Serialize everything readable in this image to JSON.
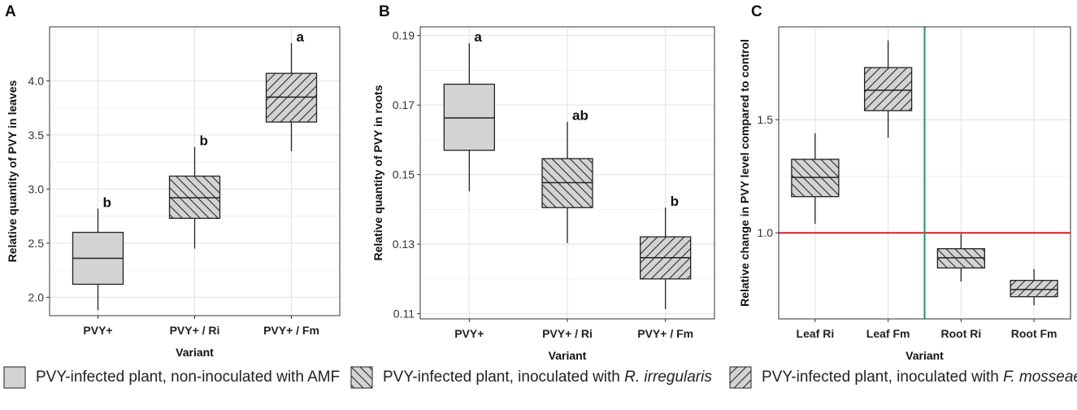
{
  "chart_data": [
    {
      "type": "box",
      "panel_label": "A",
      "xlabel": "Variant",
      "ylabel": "Relative quantity of PVY in leaves",
      "ylim": [
        1.83,
        4.5
      ],
      "yticks": [
        2.0,
        2.5,
        3.0,
        3.5,
        4.0
      ],
      "ytick_labels": [
        "2.0",
        "2.5",
        "3.0",
        "3.5",
        "4.0"
      ],
      "categories": [
        "PVY+",
        "PVY+ / Ri",
        "PVY+ / Fm"
      ],
      "boxes": [
        {
          "category": "PVY+",
          "min": 1.88,
          "q1": 2.12,
          "median": 2.36,
          "q3": 2.6,
          "max": 2.82,
          "fill": "solid",
          "letter": "b"
        },
        {
          "category": "PVY+ / Ri",
          "min": 2.45,
          "q1": 2.73,
          "median": 2.92,
          "q3": 3.12,
          "max": 3.39,
          "fill": "hatch-back",
          "letter": "b"
        },
        {
          "category": "PVY+ / Fm",
          "min": 3.35,
          "q1": 3.62,
          "median": 3.85,
          "q3": 4.07,
          "max": 4.35,
          "fill": "hatch-fwd",
          "letter": "a"
        }
      ]
    },
    {
      "type": "box",
      "panel_label": "B",
      "xlabel": "Variant",
      "ylabel": "Relative quantity of PVY in roots",
      "ylim": [
        0.1085,
        0.1925
      ],
      "yticks": [
        0.11,
        0.13,
        0.15,
        0.17,
        0.19
      ],
      "ytick_labels": [
        "0.11",
        "0.13",
        "0.15",
        "0.17",
        "0.19"
      ],
      "categories": [
        "PVY+",
        "PVY+ / Ri",
        "PVY+ / Fm"
      ],
      "boxes": [
        {
          "category": "PVY+",
          "min": 0.1452,
          "q1": 0.157,
          "median": 0.1663,
          "q3": 0.176,
          "max": 0.1878,
          "fill": "solid",
          "letter": "a"
        },
        {
          "category": "PVY+ / Ri",
          "min": 0.1303,
          "q1": 0.1405,
          "median": 0.1477,
          "q3": 0.1546,
          "max": 0.1652,
          "fill": "hatch-back",
          "letter": "ab"
        },
        {
          "category": "PVY+ / Fm",
          "min": 0.1113,
          "q1": 0.12,
          "median": 0.1261,
          "q3": 0.1321,
          "max": 0.1405,
          "fill": "hatch-fwd",
          "letter": "b"
        }
      ]
    },
    {
      "type": "box",
      "panel_label": "C",
      "xlabel": "Variant",
      "ylabel": "Relative change in PVY level compared to control",
      "ylim": [
        0.62,
        1.91
      ],
      "yticks": [
        1.0,
        1.5
      ],
      "ytick_labels": [
        "1.0",
        "1.5"
      ],
      "categories": [
        "Leaf Ri",
        "Leaf Fm",
        "Root Ri",
        "Root Fm"
      ],
      "boxes": [
        {
          "category": "Leaf Ri",
          "min": 1.04,
          "q1": 1.16,
          "median": 1.245,
          "q3": 1.325,
          "max": 1.44,
          "fill": "hatch-back",
          "letter": ""
        },
        {
          "category": "Leaf Fm",
          "min": 1.42,
          "q1": 1.54,
          "median": 1.63,
          "q3": 1.73,
          "max": 1.85,
          "fill": "hatch-fwd",
          "letter": ""
        },
        {
          "category": "Root Ri",
          "min": 0.785,
          "q1": 0.845,
          "median": 0.89,
          "q3": 0.93,
          "max": 0.995,
          "fill": "hatch-back",
          "letter": ""
        },
        {
          "category": "Root Fm",
          "min": 0.68,
          "q1": 0.718,
          "median": 0.75,
          "q3": 0.79,
          "max": 0.84,
          "fill": "hatch-fwd",
          "letter": ""
        }
      ],
      "reference_lines": [
        {
          "orientation": "horizontal",
          "value": 1.0,
          "color": "#e8161b"
        },
        {
          "orientation": "vertical",
          "between": [
            "Leaf Fm",
            "Root Ri"
          ],
          "color": "#1d9a5a"
        }
      ]
    }
  ],
  "legend": {
    "items": [
      {
        "fill": "solid",
        "text": "PVY-infected plant, non-inoculated with AMF",
        "species": ""
      },
      {
        "fill": "hatch-back",
        "text": "PVY-infected plant, inoculated with ",
        "species": "R. irregularis"
      },
      {
        "fill": "hatch-fwd",
        "text": "PVY-infected plant, inoculated with ",
        "species": "F. mosseae"
      }
    ]
  },
  "colors": {
    "box_fill": "#d3d3d3",
    "box_stroke": "#222222",
    "grid": "#e6e6e6",
    "panel_border": "#333333"
  }
}
